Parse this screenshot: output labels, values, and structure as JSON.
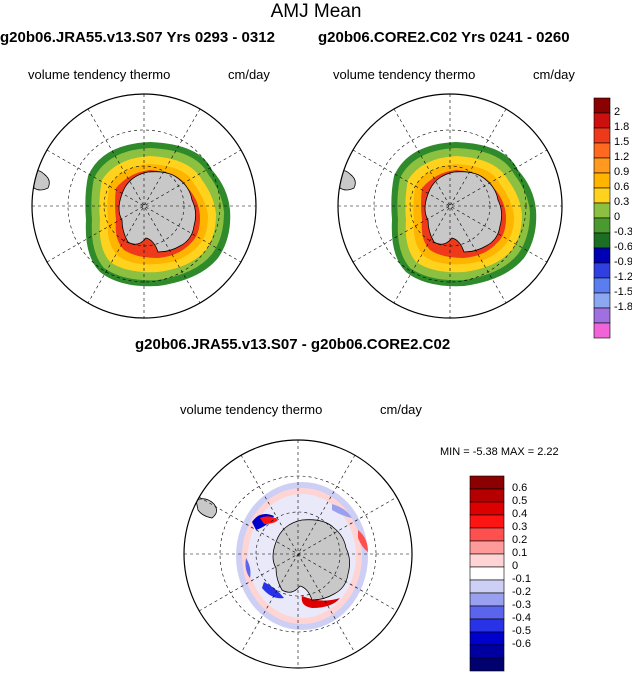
{
  "title": "AMJ Mean",
  "panels": [
    {
      "title": "g20b06.JRA55.v13.S07  Yrs 0293 - 0312",
      "variable": "volume tendency thermo",
      "units": "cm/day"
    },
    {
      "title": "g20b06.CORE2.C02  Yrs 0241 - 0260",
      "variable": "volume tendency thermo",
      "units": "cm/day"
    }
  ],
  "diff_panel": {
    "title": "g20b06.JRA55.v13.S07 - g20b06.CORE2.C02",
    "variable": "volume tendency thermo",
    "units": "cm/day",
    "stats_label": "MIN =  -5.38 MAX =   2.22"
  },
  "colorbar_top": {
    "labels": [
      "2",
      "1.8",
      "1.5",
      "1.2",
      "0.9",
      "0.6",
      "0.3",
      "0",
      "-0.3",
      "-0.6",
      "-0.9",
      "-1.2",
      "-1.5",
      "-1.8"
    ],
    "colors": [
      "#8b0000",
      "#cc1010",
      "#ee3a1a",
      "#ff6a20",
      "#ff9a1e",
      "#ffb400",
      "#ffd21e",
      "#8cc040",
      "#4a9a30",
      "#1c6e24",
      "#0000b4",
      "#3040e0",
      "#5a7ef0",
      "#8ca8f0",
      "#a070e0",
      "#f064d8"
    ]
  },
  "colorbar_diff": {
    "labels": [
      "0.6",
      "0.5",
      "0.4",
      "0.3",
      "0.2",
      "0.1",
      "0",
      "-0.1",
      "-0.2",
      "-0.3",
      "-0.4",
      "-0.5",
      "-0.6"
    ],
    "colors": [
      "#8b0000",
      "#b40000",
      "#dc0000",
      "#ff1414",
      "#ff5050",
      "#ff9a9a",
      "#ffd4d4",
      "#ffffff",
      "#cdd0f4",
      "#9aa0f0",
      "#5a64ec",
      "#2832e6",
      "#0000cc",
      "#0000a0",
      "#00006e"
    ]
  }
}
